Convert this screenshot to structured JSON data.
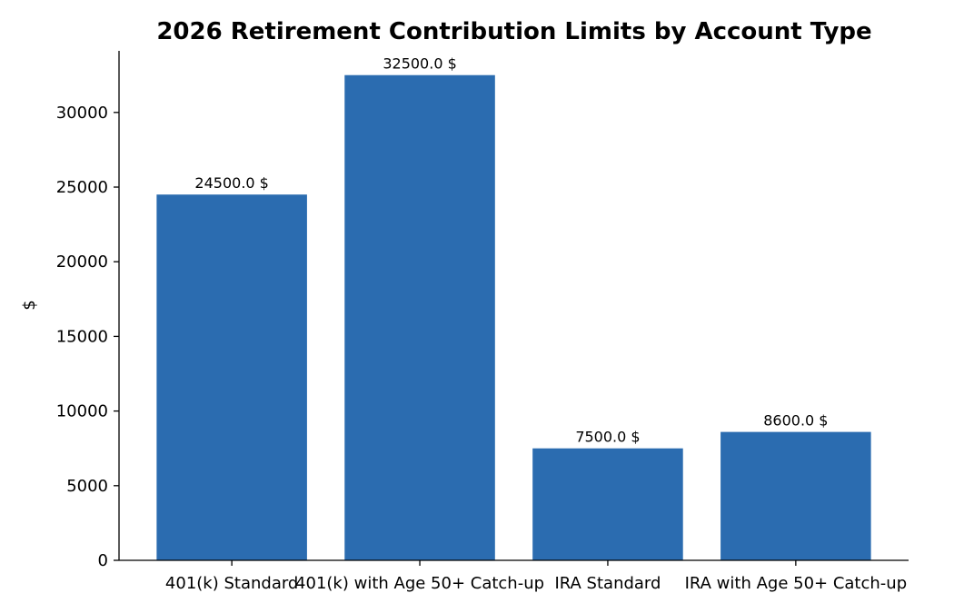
{
  "chart_data": {
    "type": "bar",
    "title": "2026 Retirement Contribution Limits by Account Type",
    "xlabel": "",
    "ylabel": "$",
    "categories": [
      "401(k) Standard",
      "401(k) with Age 50+ Catch-up",
      "IRA Standard",
      "IRA with Age 50+ Catch-up"
    ],
    "values": [
      24500,
      32500,
      7500,
      8600
    ],
    "data_labels": [
      "24500.0 $",
      "32500.0 $",
      "7500.0 $",
      "8600.0 $"
    ],
    "ylim": [
      0,
      34125
    ],
    "yticks": [
      0,
      5000,
      10000,
      15000,
      20000,
      25000,
      30000
    ],
    "grid": false,
    "bar_color": "#2b6cb0"
  }
}
